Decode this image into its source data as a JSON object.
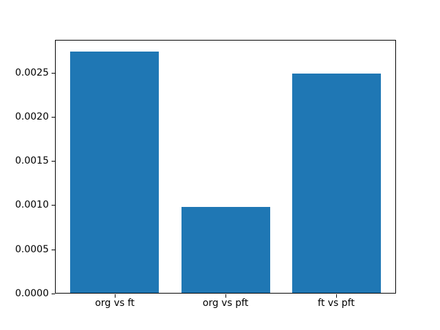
{
  "chart_data": {
    "type": "bar",
    "title": "",
    "xlabel": "",
    "ylabel": "",
    "categories": [
      "org vs ft",
      "org vs pft",
      "ft vs pft"
    ],
    "values": [
      0.00274,
      0.00098,
      0.00249
    ],
    "ylim": [
      0,
      0.00287
    ],
    "yticks": [
      0.0,
      0.0005,
      0.001,
      0.0015,
      0.002,
      0.0025
    ],
    "ytick_labels": [
      "0.0000",
      "0.0005",
      "0.0010",
      "0.0015",
      "0.0020",
      "0.0025"
    ],
    "grid": false,
    "legend": false,
    "bar_color": "#1f77b4",
    "background_color": "#ffffff",
    "axis_color": "#000000"
  }
}
